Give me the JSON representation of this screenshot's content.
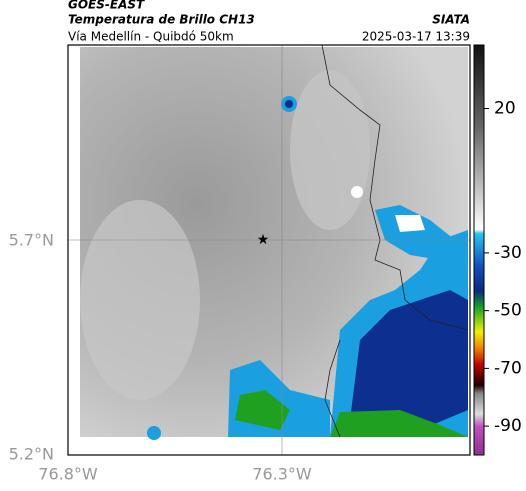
{
  "header": {
    "satellite": "GOES-EAST",
    "product": "Temperatura de Brillo CH13",
    "source": "SIATA",
    "route": "Vía Medellín - Quibdó 50km",
    "datetime": "2025-03-17 13:39"
  },
  "axes": {
    "lat_labels": [
      "5.7°N",
      "5.2°N"
    ],
    "lon_labels": [
      "76.8°W",
      "76.3°W"
    ]
  },
  "colorbar": {
    "lim": [
      42,
      -100
    ],
    "ticks": [
      20,
      -30,
      -50,
      -70,
      -90
    ]
  }
}
